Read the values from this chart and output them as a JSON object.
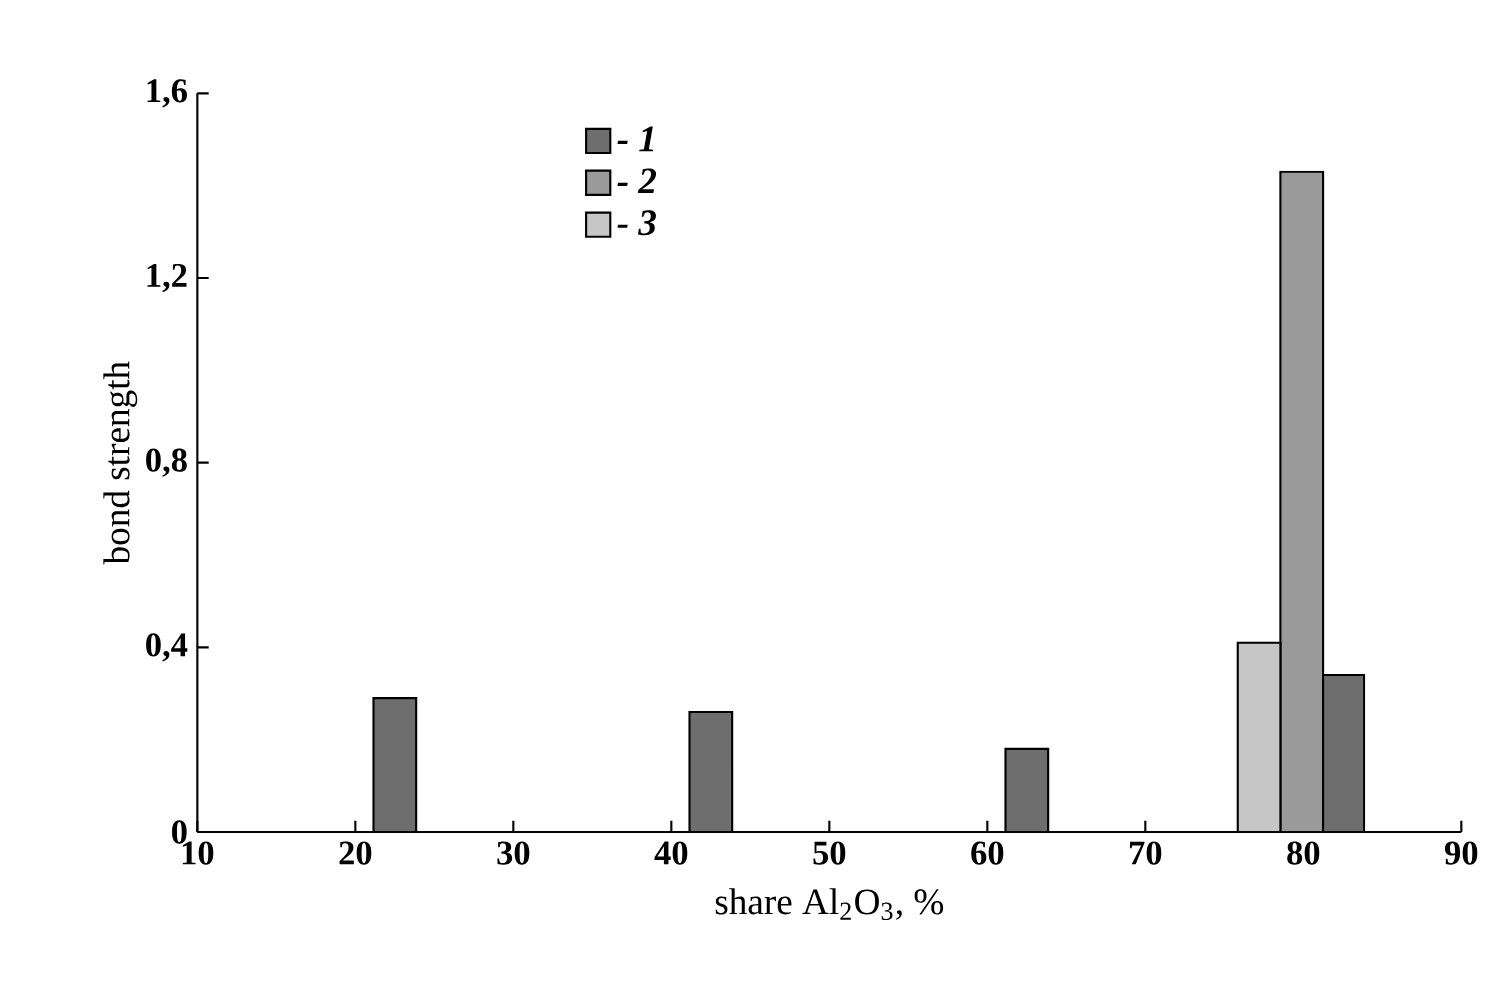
{
  "chart_data": {
    "type": "bar",
    "xlabel": "share  Al$_{2}$O$_{3}$, %",
    "ylabel": "bond strength",
    "xlim": [
      10,
      90
    ],
    "xticks": [
      10,
      20,
      30,
      40,
      50,
      60,
      70,
      80,
      90
    ],
    "ylim": [
      0,
      1.6
    ],
    "yticks": [
      0,
      {
        "value": 0.4,
        "label": "0,4"
      },
      {
        "value": 0.8,
        "label": "0,8"
      },
      {
        "value": 1.2,
        "label": "1,2"
      },
      {
        "value": 1.6,
        "label": "1,6"
      }
    ],
    "legend": "top left",
    "grid": false,
    "series": [
      {
        "name": "- 1",
        "color": "#6e6e6e",
        "x": [
          22.5,
          42.5,
          62.5,
          82.5
        ],
        "values": [
          0.29,
          0.26,
          0.18,
          0.34
        ]
      },
      {
        "name": "- 2",
        "color": "#9a9a9a",
        "x": [
          79.9
        ],
        "values": [
          1.43
        ]
      },
      {
        "name": "- 3",
        "color": "#c6c6c6",
        "x": [
          77.2
        ],
        "values": [
          0.41
        ]
      }
    ]
  }
}
